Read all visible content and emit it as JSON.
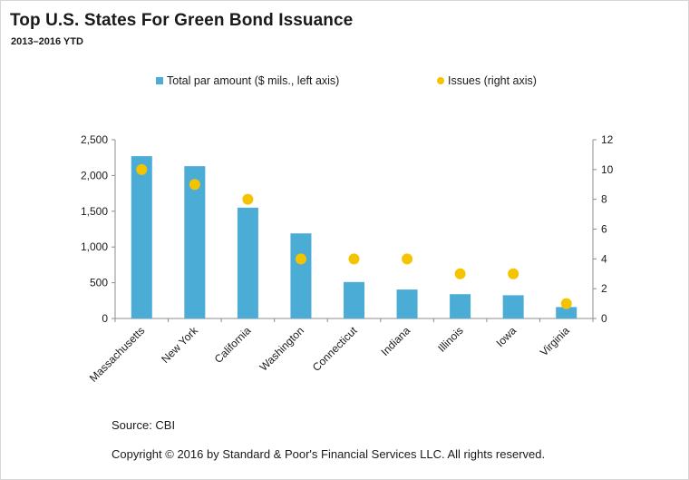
{
  "chart_data": {
    "type": "bar",
    "title": "Top U.S. States For Green Bond Issuance",
    "subtitle": "2013–2016 YTD",
    "categories": [
      "Massachusetts",
      "New York",
      "California",
      "Washington",
      "Connecticut",
      "Indiana",
      "Illinois",
      "Iowa",
      "Virginia"
    ],
    "series": [
      {
        "name": "Total par amount ($ mils., left axis)",
        "type": "bar",
        "axis": "left",
        "color": "#4bacd6",
        "values": [
          2270,
          2130,
          1550,
          1190,
          510,
          405,
          340,
          325,
          160
        ]
      },
      {
        "name": "Issues (right axis)",
        "type": "scatter",
        "axis": "right",
        "color": "#f5c400",
        "values": [
          10,
          9,
          8,
          4,
          4,
          4,
          3,
          3,
          1
        ]
      }
    ],
    "left_axis": {
      "ylim": [
        0,
        2500
      ],
      "ticks": [
        "0",
        "500",
        "1,000",
        "1,500",
        "2,000",
        "2,500"
      ]
    },
    "right_axis": {
      "ylim": [
        0,
        12
      ],
      "ticks": [
        "0",
        "2",
        "4",
        "6",
        "8",
        "10",
        "12"
      ]
    },
    "legend_position": "top",
    "grid": false
  },
  "footer": {
    "source": "Source: CBI",
    "copyright": "Copyright © 2016 by Standard & Poor's Financial Services LLC. All rights reserved."
  }
}
